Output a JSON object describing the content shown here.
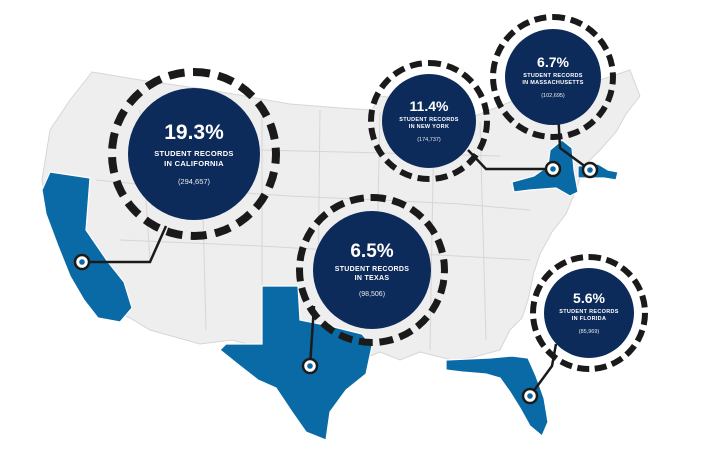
{
  "map": {
    "colors": {
      "highlight": "#0a6aa6",
      "land": "#eeeeee",
      "border": "#d6d6d6",
      "bubble": "#0d2b5a",
      "ring": "#1a1a1a"
    },
    "callouts": [
      {
        "id": "california",
        "pct": "19.3%",
        "line1": "STUDENT RECORDS",
        "line2": "IN CALIFORNIA",
        "count": "(294,657)"
      },
      {
        "id": "new-york",
        "pct": "11.4%",
        "line1": "STUDENT RECORDS",
        "line2": "IN NEW YORK",
        "count": "(174,737)"
      },
      {
        "id": "massachusetts",
        "pct": "6.7%",
        "line1": "STUDENT RECORDS",
        "line2": "IN MASSACHUSETTS",
        "count": "(102,695)"
      },
      {
        "id": "texas",
        "pct": "6.5%",
        "line1": "STUDENT RECORDS",
        "line2": "IN TEXAS",
        "count": "(98,506)"
      },
      {
        "id": "florida",
        "pct": "5.6%",
        "line1": "STUDENT RECORDS",
        "line2": "IN FLORIDA",
        "count": "(85,969)"
      }
    ]
  }
}
